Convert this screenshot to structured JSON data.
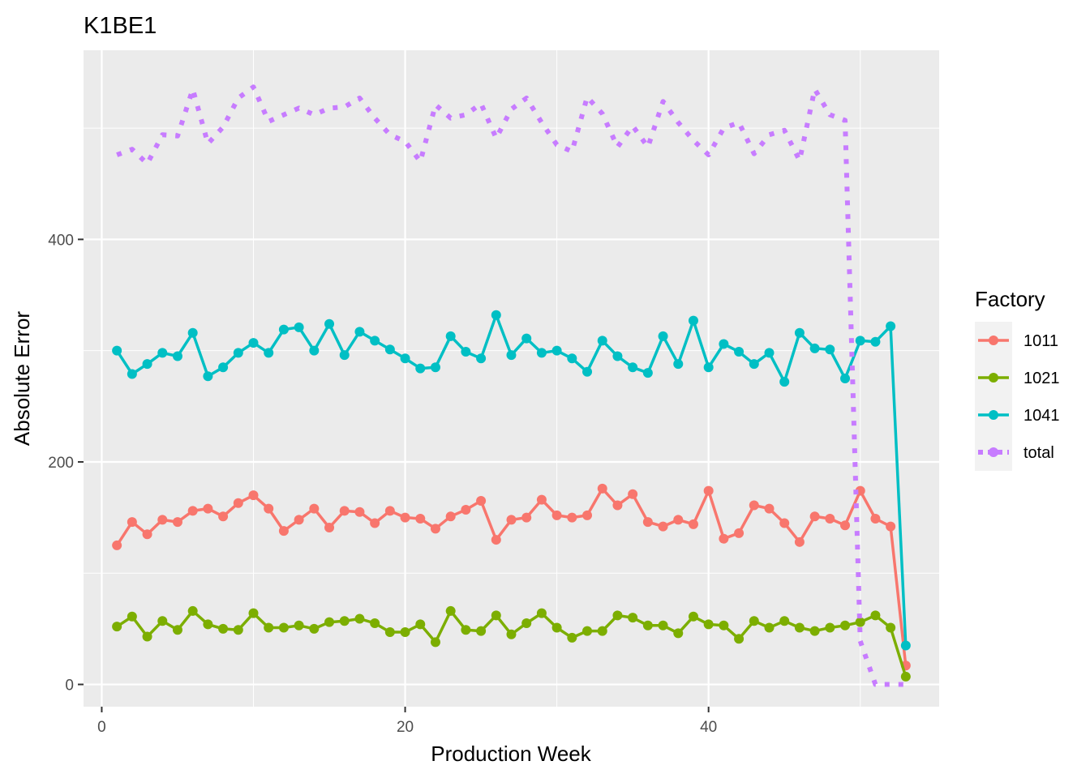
{
  "chart_data": {
    "type": "line",
    "title": "K1BE1",
    "xlabel": "Production Week",
    "ylabel": "Absolute Error",
    "xlim": [
      -1.2,
      55.2
    ],
    "ylim": [
      -20,
      570
    ],
    "x_ticks": [
      0,
      20,
      40
    ],
    "y_ticks": [
      0,
      200,
      400
    ],
    "grid": true,
    "legend": {
      "title": "Factory",
      "position": "right"
    },
    "x": [
      1,
      2,
      3,
      4,
      5,
      6,
      7,
      8,
      9,
      10,
      11,
      12,
      13,
      14,
      15,
      16,
      17,
      18,
      19,
      20,
      21,
      22,
      23,
      24,
      25,
      26,
      27,
      28,
      29,
      30,
      31,
      32,
      33,
      34,
      35,
      36,
      37,
      38,
      39,
      40,
      41,
      42,
      43,
      44,
      45,
      46,
      47,
      48,
      49,
      50,
      51,
      52,
      53
    ],
    "series": [
      {
        "name": "1011",
        "color": "#F8766D",
        "style": "solid",
        "values": [
          125,
          146,
          135,
          148,
          146,
          156,
          158,
          151,
          163,
          170,
          158,
          138,
          148,
          158,
          141,
          156,
          155,
          145,
          156,
          150,
          149,
          140,
          151,
          157,
          165,
          130,
          148,
          150,
          166,
          152,
          150,
          152,
          176,
          161,
          171,
          146,
          142,
          148,
          144,
          174,
          131,
          136,
          161,
          158,
          145,
          128,
          151,
          149,
          143,
          174,
          149,
          142,
          17
        ]
      },
      {
        "name": "1021",
        "color": "#7CAE00",
        "style": "solid",
        "values": [
          52,
          61,
          43,
          57,
          49,
          66,
          54,
          50,
          49,
          64,
          51,
          51,
          53,
          50,
          56,
          57,
          59,
          55,
          47,
          47,
          54,
          38,
          66,
          49,
          48,
          62,
          45,
          55,
          64,
          51,
          42,
          48,
          48,
          62,
          60,
          53,
          53,
          46,
          61,
          54,
          53,
          41,
          57,
          51,
          57,
          51,
          48,
          51,
          53,
          56,
          62,
          51,
          7
        ]
      },
      {
        "name": "1041",
        "color": "#00BFC4",
        "style": "solid",
        "values": [
          300,
          279,
          288,
          298,
          295,
          316,
          277,
          285,
          298,
          307,
          298,
          319,
          321,
          300,
          324,
          296,
          317,
          309,
          301,
          293,
          284,
          285,
          313,
          299,
          293,
          332,
          296,
          311,
          298,
          300,
          293,
          281,
          309,
          295,
          285,
          280,
          313,
          288,
          327,
          285,
          306,
          299,
          288,
          298,
          272,
          316,
          302,
          301,
          275,
          309,
          308,
          322,
          35
        ]
      },
      {
        "name": "total",
        "color": "#C77CFF",
        "style": "dotted",
        "values": [
          476,
          481,
          468,
          494,
          493,
          535,
          486,
          501,
          527,
          537,
          506,
          512,
          518,
          512,
          518,
          519,
          527,
          509,
          494,
          488,
          470,
          521,
          509,
          512,
          522,
          491,
          517,
          527,
          505,
          485,
          479,
          528,
          513,
          483,
          502,
          483,
          524,
          505,
          489,
          476,
          500,
          505,
          477,
          494,
          498,
          471,
          535,
          512,
          507,
          39,
          0,
          0,
          0
        ]
      }
    ]
  }
}
